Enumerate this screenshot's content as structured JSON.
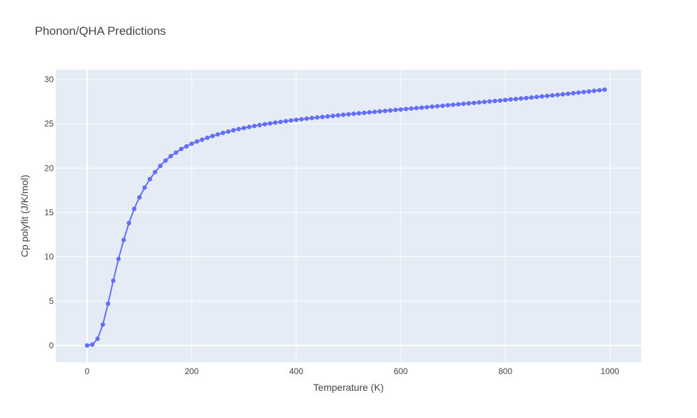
{
  "chart_data": {
    "type": "line",
    "title": "Phonon/QHA Predictions",
    "xlabel": "Temperature (K)",
    "ylabel": "Cp polyfit (J/K/mol)",
    "xlim": [
      -60,
      1060
    ],
    "ylim": [
      -1.9,
      31.1
    ],
    "x_ticks": [
      0,
      200,
      400,
      600,
      800,
      1000
    ],
    "y_ticks": [
      0,
      5,
      10,
      15,
      20,
      25,
      30
    ],
    "grid": true,
    "marker": "circle",
    "colors": {
      "plot_bg": "#E5ECF6",
      "grid": "#FFFFFF",
      "series": "#636EFA",
      "text": "#444444"
    },
    "series": [
      {
        "x": [
          0,
          10,
          20,
          30,
          40,
          50,
          60,
          70,
          80,
          90,
          100,
          110,
          120,
          130,
          140,
          150,
          160,
          170,
          180,
          190,
          200,
          210,
          220,
          230,
          240,
          250,
          260,
          270,
          280,
          290,
          300,
          310,
          320,
          330,
          340,
          350,
          360,
          370,
          380,
          390,
          400,
          410,
          420,
          430,
          440,
          450,
          460,
          470,
          480,
          490,
          500,
          510,
          520,
          530,
          540,
          550,
          560,
          570,
          580,
          590,
          600,
          610,
          620,
          630,
          640,
          650,
          660,
          670,
          680,
          690,
          700,
          710,
          720,
          730,
          740,
          750,
          760,
          770,
          780,
          790,
          800,
          810,
          820,
          830,
          840,
          850,
          860,
          870,
          880,
          890,
          900,
          910,
          920,
          930,
          940,
          950,
          960,
          970,
          980,
          990
        ],
        "y": [
          0,
          0.1,
          0.75,
          2.35,
          4.7,
          7.3,
          9.75,
          11.9,
          13.8,
          15.4,
          16.7,
          17.8,
          18.75,
          19.55,
          20.25,
          20.85,
          21.35,
          21.75,
          22.15,
          22.45,
          22.75,
          23.0,
          23.2,
          23.42,
          23.62,
          23.8,
          23.97,
          24.12,
          24.27,
          24.4,
          24.52,
          24.64,
          24.75,
          24.85,
          24.95,
          25.04,
          25.13,
          25.21,
          25.29,
          25.37,
          25.44,
          25.51,
          25.58,
          25.65,
          25.71,
          25.77,
          25.83,
          25.89,
          25.95,
          26.01,
          26.07,
          26.12,
          26.18,
          26.23,
          26.29,
          26.34,
          26.4,
          26.45,
          26.5,
          26.56,
          26.61,
          26.66,
          26.72,
          26.77,
          26.82,
          26.87,
          26.93,
          26.98,
          27.03,
          27.09,
          27.14,
          27.19,
          27.25,
          27.3,
          27.35,
          27.41,
          27.46,
          27.52,
          27.57,
          27.62,
          27.68,
          27.74,
          27.79,
          27.85,
          27.9,
          27.96,
          28.02,
          28.08,
          28.14,
          28.2,
          28.26,
          28.32,
          28.38,
          28.45,
          28.51,
          28.58,
          28.64,
          28.71,
          28.78,
          28.85
        ]
      }
    ]
  }
}
